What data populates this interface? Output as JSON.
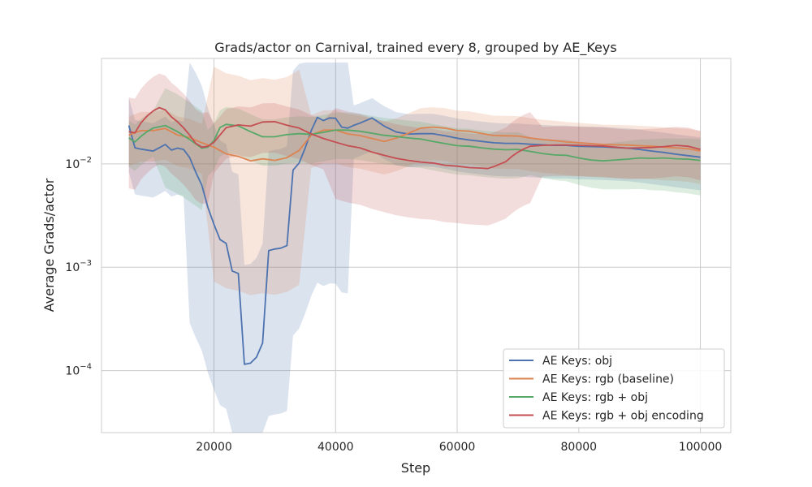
{
  "chart_data": {
    "type": "line",
    "title": "Grads/actor on Carnival, trained every 8, grouped by AE_Keys",
    "xlabel": "Step",
    "ylabel": "Average Grads/actor",
    "xlim": [
      1500,
      105000
    ],
    "ylim_log10": [
      -4.6,
      -0.98
    ],
    "y_scale": "log",
    "grid": true,
    "legend_position": "lower-right",
    "x_ticks": [
      20000,
      40000,
      60000,
      80000,
      100000
    ],
    "x_tick_labels": [
      "20000",
      "40000",
      "60000",
      "80000",
      "100000"
    ],
    "y_ticks": [
      {
        "exp": -2,
        "base": "10",
        "sup": "−2"
      },
      {
        "exp": -3,
        "base": "10",
        "sup": "−3"
      },
      {
        "exp": -4,
        "base": "10",
        "sup": "−4"
      }
    ],
    "series": [
      {
        "name": "AE Keys: obj",
        "color": "#4c72b0",
        "x": [
          6000,
          7000,
          8000,
          10000,
          11000,
          12000,
          13000,
          14000,
          15000,
          16000,
          17000,
          18000,
          19000,
          20000,
          21000,
          22000,
          23000,
          24000,
          25000,
          26000,
          27000,
          28000,
          29000,
          30000,
          31000,
          32000,
          33000,
          34000,
          35000,
          36000,
          37000,
          38000,
          39000,
          40000,
          41000,
          42000,
          43000,
          44000,
          46000,
          48000,
          50000,
          52000,
          54000,
          56000,
          58000,
          60000,
          62000,
          64000,
          66000,
          68000,
          70000,
          72000,
          74000,
          76000,
          78000,
          80000,
          82000,
          84000,
          86000,
          88000,
          90000,
          92000,
          94000,
          96000,
          98000,
          100000
        ],
        "y": [
          0.0235,
          0.0143,
          0.0139,
          0.0133,
          0.0143,
          0.0154,
          0.0136,
          0.0142,
          0.0138,
          0.0115,
          0.0083,
          0.0062,
          0.0038,
          0.0026,
          0.00185,
          0.0017,
          0.00092,
          0.00087,
          0.000115,
          0.000118,
          0.000135,
          0.000185,
          0.00145,
          0.0015,
          0.00153,
          0.00162,
          0.0087,
          0.0102,
          0.0142,
          0.021,
          0.0282,
          0.0262,
          0.0278,
          0.0276,
          0.0227,
          0.0222,
          0.0236,
          0.0248,
          0.0278,
          0.0232,
          0.0203,
          0.0194,
          0.0196,
          0.0196,
          0.0187,
          0.0177,
          0.017,
          0.0165,
          0.016,
          0.0158,
          0.0158,
          0.0155,
          0.0153,
          0.0151,
          0.0151,
          0.0148,
          0.0147,
          0.0146,
          0.0144,
          0.0142,
          0.0138,
          0.0133,
          0.0129,
          0.0124,
          0.012,
          0.0116
        ]
      },
      {
        "name": "AE Keys: rgb (baseline)",
        "color": "#dd8452",
        "x": [
          6000,
          8000,
          10000,
          12000,
          14000,
          16000,
          18000,
          20000,
          22000,
          24000,
          26000,
          28000,
          30000,
          32000,
          34000,
          36000,
          38000,
          40000,
          42000,
          44000,
          46000,
          48000,
          50000,
          52000,
          54000,
          56000,
          58000,
          60000,
          62000,
          64000,
          66000,
          68000,
          70000,
          72000,
          74000,
          76000,
          78000,
          80000,
          82000,
          84000,
          86000,
          88000,
          90000,
          92000,
          94000,
          96000,
          98000,
          100000
        ],
        "y": [
          0.019,
          0.021,
          0.021,
          0.022,
          0.019,
          0.018,
          0.016,
          0.0145,
          0.0125,
          0.0118,
          0.0107,
          0.0112,
          0.0108,
          0.0115,
          0.0135,
          0.019,
          0.0212,
          0.0212,
          0.0195,
          0.0188,
          0.0176,
          0.0165,
          0.0178,
          0.0198,
          0.0222,
          0.0227,
          0.0222,
          0.021,
          0.0207,
          0.0197,
          0.0188,
          0.0187,
          0.0186,
          0.0178,
          0.0172,
          0.0168,
          0.0163,
          0.016,
          0.0157,
          0.0154,
          0.0153,
          0.0152,
          0.015,
          0.0148,
          0.0145,
          0.0143,
          0.014,
          0.0133
        ]
      },
      {
        "name": "AE Keys: rgb + obj",
        "color": "#55a868",
        "x": [
          6000,
          7000,
          8000,
          9000,
          10000,
          12000,
          14000,
          16000,
          17000,
          18000,
          19000,
          20000,
          21000,
          22000,
          24000,
          26000,
          28000,
          30000,
          32000,
          34000,
          36000,
          38000,
          40000,
          42000,
          44000,
          46000,
          48000,
          50000,
          52000,
          54000,
          56000,
          58000,
          60000,
          62000,
          64000,
          66000,
          68000,
          70000,
          72000,
          74000,
          76000,
          78000,
          80000,
          82000,
          84000,
          86000,
          88000,
          90000,
          92000,
          94000,
          96000,
          98000,
          100000
        ],
        "y": [
          0.0178,
          0.0163,
          0.0185,
          0.0205,
          0.0222,
          0.0235,
          0.0205,
          0.0172,
          0.0156,
          0.0142,
          0.0145,
          0.0168,
          0.0225,
          0.0241,
          0.0233,
          0.0205,
          0.0183,
          0.0183,
          0.0192,
          0.0196,
          0.0193,
          0.0202,
          0.0212,
          0.0212,
          0.0207,
          0.0198,
          0.0189,
          0.0184,
          0.0178,
          0.0174,
          0.0165,
          0.0157,
          0.015,
          0.0148,
          0.0143,
          0.0139,
          0.0137,
          0.0138,
          0.0132,
          0.0126,
          0.0122,
          0.0121,
          0.0114,
          0.0109,
          0.0107,
          0.0109,
          0.0111,
          0.0114,
          0.0113,
          0.0114,
          0.0112,
          0.0111,
          0.0108
        ]
      },
      {
        "name": "AE Keys: rgb + obj encoding",
        "color": "#c44e52",
        "x": [
          6000,
          7000,
          8000,
          9000,
          10000,
          11000,
          12000,
          13000,
          14000,
          15000,
          16000,
          17000,
          18000,
          19000,
          20000,
          22000,
          24000,
          26000,
          28000,
          30000,
          32000,
          34000,
          36000,
          38000,
          40000,
          42000,
          44000,
          46000,
          48000,
          50000,
          52000,
          54000,
          56000,
          58000,
          60000,
          62000,
          64000,
          65000,
          66000,
          68000,
          69000,
          70000,
          71000,
          72000,
          74000,
          76000,
          78000,
          80000,
          82000,
          84000,
          86000,
          88000,
          90000,
          92000,
          94000,
          96000,
          98000,
          100000
        ],
        "y": [
          0.0205,
          0.02,
          0.025,
          0.029,
          0.0325,
          0.035,
          0.0333,
          0.0285,
          0.0255,
          0.0223,
          0.019,
          0.0158,
          0.0145,
          0.0148,
          0.0162,
          0.0224,
          0.0238,
          0.0232,
          0.0254,
          0.0256,
          0.0237,
          0.0222,
          0.0195,
          0.0176,
          0.0162,
          0.015,
          0.0143,
          0.013,
          0.0121,
          0.0113,
          0.0108,
          0.0104,
          0.0102,
          0.0097,
          0.0095,
          0.0092,
          0.0091,
          0.009,
          0.0094,
          0.0105,
          0.0118,
          0.013,
          0.014,
          0.0148,
          0.0151,
          0.0152,
          0.0152,
          0.0151,
          0.015,
          0.0149,
          0.0145,
          0.0142,
          0.0143,
          0.0144,
          0.0147,
          0.0151,
          0.0148,
          0.0138
        ]
      }
    ]
  }
}
